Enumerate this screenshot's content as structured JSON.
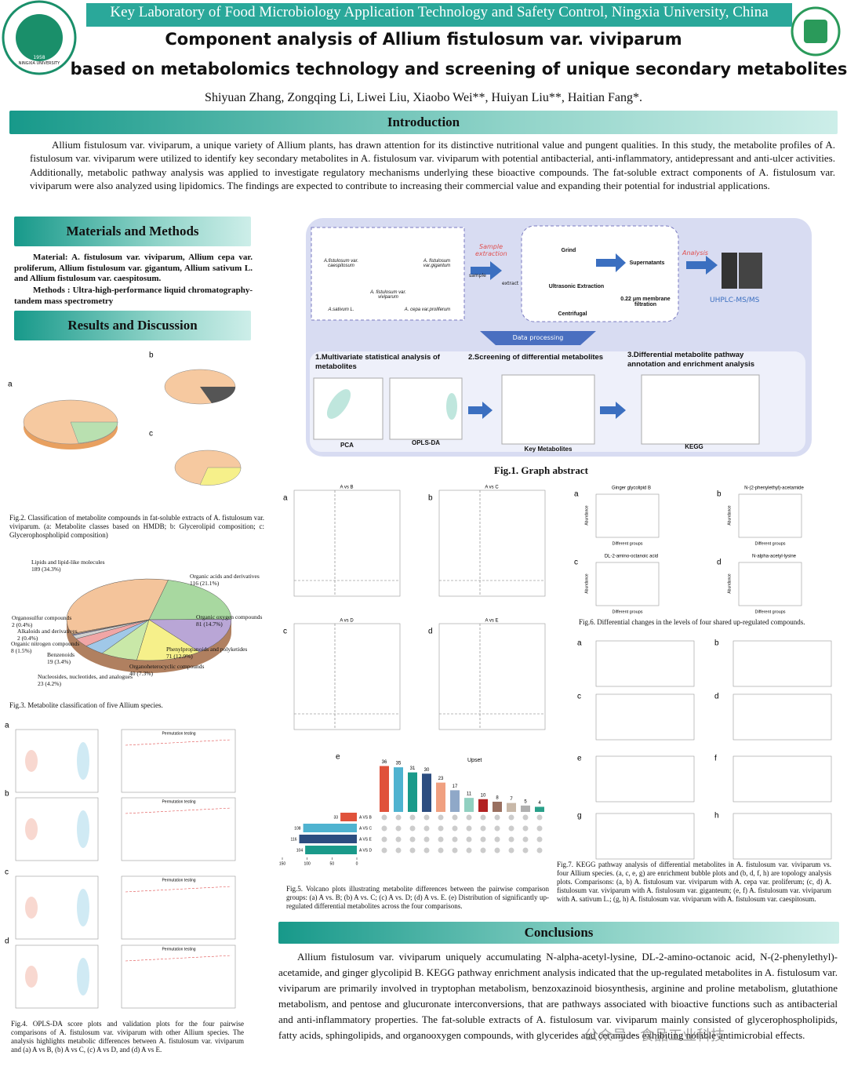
{
  "header": {
    "affiliation": "Key Laboratory of Food Microbiology Application Technology and Safety Control, Ningxia University, China",
    "logo_text": "NINGXIA UNIVERSITY",
    "logo_year": "1958",
    "title_line1": "Component analysis of Allium fistulosum var. viviparum",
    "title_line2": "based on metabolomics technology and screening of unique secondary metabolites",
    "authors": "Shiyuan Zhang, Zongqing Li, Liwei Liu, Xiaobo Wei**, Huiyan Liu**, Haitian Fang*."
  },
  "introduction": {
    "heading": "Introduction",
    "text": "Allium fistulosum var. viviparum, a unique variety of Allium plants, has drawn attention for its distinctive nutritional value and pungent qualities. In this study, the metabolite profiles of A. fistulosum var. viviparum were utilized to identify key secondary metabolites in A. fistulosum var. viviparum with potential antibacterial, anti-inflammatory, antidepressant and anti-ulcer activities. Additionally, metabolic pathway analysis was applied to investigate regulatory mechanisms underlying these bioactive compounds. The fat-soluble extract components of A. fistulosum var. viviparum were also analyzed using lipidomics. The findings are expected to contribute to increasing their commercial value and expanding their potential for industrial applications."
  },
  "materials": {
    "heading": "Materials and Methods",
    "material": "Material: A. fistulosum var. viviparum, Allium cepa var. proliferum, Allium fistulosum var. gigantum, Allium sativum L. and Allium fistulosum var. caespitosum.",
    "methods": "Methods : Ultra-high-performance liquid chromatography-tandem mass spectrometry"
  },
  "results": {
    "heading": "Results and Discussion"
  },
  "fig2": {
    "panels": [
      "a",
      "b",
      "c"
    ],
    "caption": "Fig.2. Classification of metabolite compounds in fat-soluble extracts of A. fistulosum var. viviparum. (a: Metabolite classes based on HMDB; b: Glycerolipid composition; c: Glycerophospholipid composition)"
  },
  "fig3": {
    "type": "pie",
    "labels": [
      "Lipids and lipid-like molecules",
      "Organic acids and derivatives",
      "Organic oxygen compounds",
      "Phenylpropanoids and polyketides",
      "Organoheterocyclic compounds",
      "Nucleosides, nucleotides, and analogues",
      "Benzenoids",
      "Organic nitrogen compounds",
      "Alkaloids and derivatives",
      "Organosulfur compounds"
    ],
    "values": [
      189,
      116,
      81,
      71,
      40,
      23,
      19,
      8,
      2,
      2
    ],
    "value_labels": [
      "189 (34.3%)",
      "116 (21.1%)",
      "81 (14.7%)",
      "71 (12.9%)",
      "40 (7.3%)",
      "23 (4.2%)",
      "19 (3.4%)",
      "8 (1.5%)",
      "2 (0.4%)",
      "2 (0.4%)"
    ],
    "colors": [
      "#f4c49b",
      "#a8d8a0",
      "#b9a6d6",
      "#f6f08a",
      "#c9e8a8",
      "#a0c8e8",
      "#f0a6a6",
      "#d0d0d0",
      "#9090d0",
      "#e0b080"
    ],
    "caption": "Fig.3. Metabolite classification of five Allium species."
  },
  "fig4": {
    "panels": [
      "a",
      "b",
      "c",
      "d"
    ],
    "permutation_title": "Permutation testing",
    "caption": "Fig.4. OPLS-DA score plots and validation plots for the four pairwise comparisons of A. fistulosum var. viviparum with other Allium species. The analysis highlights metabolic differences between A. fistulosum var. viviparum and (a) A vs B, (b) A vs C, (c) A vs D, and (d) A vs E."
  },
  "fig1": {
    "samples": [
      "A.fistulosum var. caespitosum",
      "A. fistulosum var. viviparum",
      "A. fistulosum var.gigantum",
      "A.sativum L.",
      "A. cepa var.proliferum"
    ],
    "sample_extraction": "Sample extraction",
    "sample": "sample",
    "extract": "extract",
    "steps": [
      "Grind",
      "Ultrasonic Extraction",
      "Centrifugal",
      "Supernatants",
      "0.22 μm membrane filtration"
    ],
    "analysis": "Analysis",
    "instrument": "UHPLC-MS/MS",
    "data_processing": "Data processing",
    "analyses": [
      "1.Multivariate statistical analysis of metabolites",
      "2.Screening of differential metabolites",
      "3.Differential metabolite pathway annotation and enrichment analysis"
    ],
    "plots": [
      "PCA",
      "OPLS-DA",
      "Key Metabolites",
      "KEGG"
    ],
    "caption": "Fig.1. Graph abstract"
  },
  "fig5": {
    "panels": [
      "a",
      "b",
      "c",
      "d",
      "e"
    ],
    "comparisons": [
      "A vs B",
      "A vs C",
      "A vs D",
      "A vs E"
    ],
    "upset": {
      "type": "bar",
      "title": "Upset",
      "values": [
        36,
        35,
        31,
        30,
        23,
        17,
        11,
        10,
        8,
        7,
        5,
        4
      ],
      "colors": [
        "#e0523b",
        "#4fb3d0",
        "#1a9a8a",
        "#2c4d80",
        "#f0a080",
        "#8fa8c8",
        "#90d0c0",
        "#b22222",
        "#9a7060",
        "#c8b8a8",
        "#b0b0b0",
        "#2aa08a"
      ],
      "ylim": [
        0,
        40
      ],
      "sets": [
        "A VS B",
        "A VS C",
        "A VS E",
        "A VS D"
      ],
      "set_sizes": [
        33,
        108,
        116,
        104
      ],
      "set_colors": [
        "#e0523b",
        "#4fb3d0",
        "#2c4d80",
        "#1a9a8a"
      ],
      "xlim": [
        150,
        0
      ],
      "xticks": [
        150,
        100,
        50,
        0
      ]
    },
    "caption": "Fig.5. Volcano plots illustrating metabolite differences between the pairwise comparison groups: (a) A vs. B; (b) A vs. C; (c) A vs. D; (d) A vs. E. (e) Distribution of significantly up-regulated differential metabolites across the four comparisons."
  },
  "fig6": {
    "panels": [
      "a",
      "b",
      "c",
      "d"
    ],
    "titles": [
      "Ginger glycolipid B",
      "N-(2-phenylethyl)-acetamide",
      "DL-2-amino-octanoic acid",
      "N-alpha-acetyl-lysine"
    ],
    "x_label": "Different groups",
    "y_label": "Abundance",
    "caption": "Fig.6. Differential changes in the levels of four shared up-regulated compounds."
  },
  "fig7": {
    "panels": [
      "a",
      "b",
      "c",
      "d",
      "e",
      "f",
      "g",
      "h"
    ],
    "caption": "Fig.7. KEGG pathway analysis of differential metabolites in A. fistulosum var. viviparum vs. four Allium species. (a, c, e, g) are enrichment bubble plots and (b, d, f, h) are topology analysis plots. Comparisons: (a, b) A. fistulosum var. viviparum with A. cepa var. proliferum; (c, d) A. fistulosum var. viviparum with A. fistulosum var. giganteum; (e, f) A. fistulosum var. viviparum with A. sativum L.; (g, h) A. fistulosum var. viviparum with A. fistulosum var. caespitosum."
  },
  "conclusions": {
    "heading": "Conclusions",
    "text": "Allium fistulosum var. viviparum uniquely accumulating N-alpha-acetyl-lysine, DL-2-amino-octanoic acid, N-(2-phenylethyl)-acetamide, and ginger glycolipid B. KEGG pathway enrichment analysis indicated that the up-regulated metabolites in A. fistulosum var. viviparum are primarily involved in tryptophan metabolism, benzoxazinoid biosynthesis, arginine and proline metabolism, glutathione metabolism, and pentose and glucuronate interconversions, that are pathways associated with bioactive functions such as antibacterial and anti-inflammatory properties. The fat-soluble extracts of A. fistulosum var. viviparum mainly consisted of glycerophospholipids, fatty acids, sphingolipids, and organooxygen compounds, with glycerides and ceramides exhibiting notable antimicrobial effects."
  },
  "watermark": "公众号 · 食品工业科技"
}
